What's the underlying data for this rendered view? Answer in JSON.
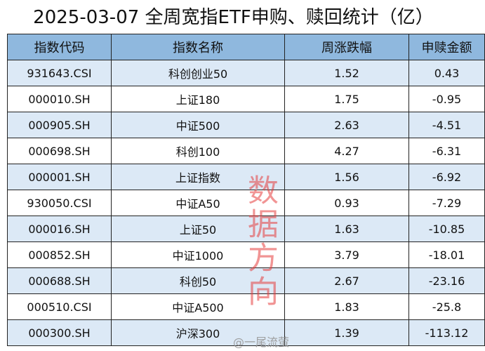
{
  "title": "2025-03-07 全周宽指ETF申购、赎回统计（亿）",
  "headers": [
    "指数代码",
    "指数名称",
    "周涨跌幅",
    "申赎金额"
  ],
  "rows": [
    [
      "931643.CSI",
      "科创创业50",
      "1.52",
      "0.43"
    ],
    [
      "000010.SH",
      "上证180",
      "1.75",
      "-0.95"
    ],
    [
      "000905.SH",
      "中证500",
      "2.63",
      "-4.51"
    ],
    [
      "000698.SH",
      "科创100",
      "4.27",
      "-6.31"
    ],
    [
      "000001.SH",
      "上证指数",
      "1.56",
      "-6.92"
    ],
    [
      "930050.CSI",
      "中证A50",
      "0.93",
      "-7.29"
    ],
    [
      "000016.SH",
      "上证50",
      "1.63",
      "-10.85"
    ],
    [
      "000852.SH",
      "中证1000",
      "3.79",
      "-18.01"
    ],
    [
      "000688.SH",
      "科创50",
      "2.67",
      "-23.16"
    ],
    [
      "000510.CSI",
      "中证A500",
      "1.83",
      "-25.8"
    ],
    [
      "000300.SH",
      "沪深300",
      "1.39",
      "-113.12"
    ]
  ],
  "watermark": "数据方向",
  "source_watermark": "@一尾流萤"
}
